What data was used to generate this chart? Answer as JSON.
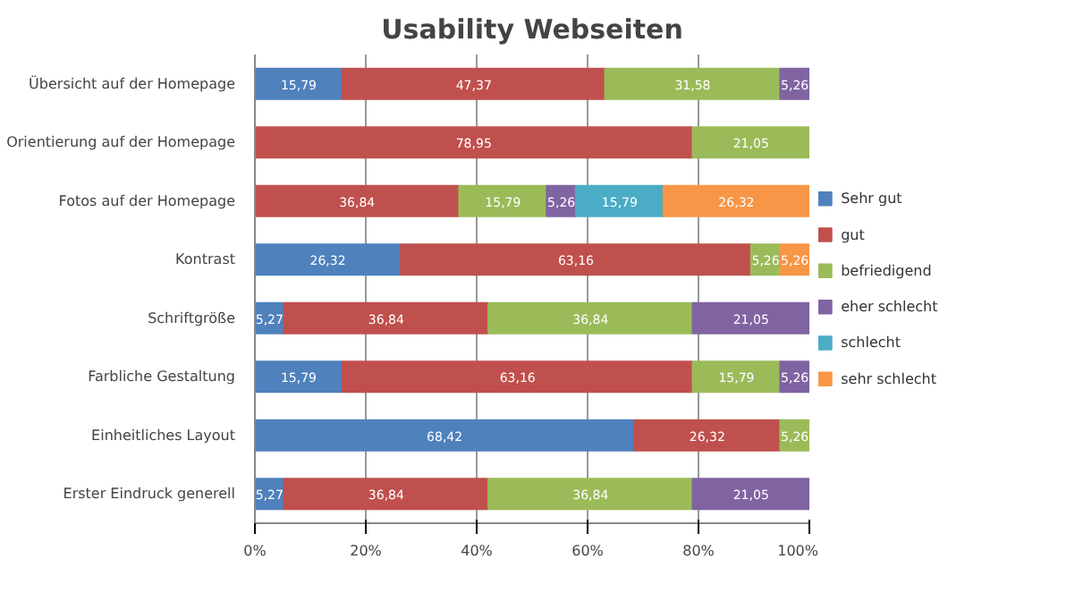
{
  "chart_data": {
    "type": "bar",
    "title": "Usability Webseiten",
    "orientation": "horizontal",
    "stacked": true,
    "categories": [
      "Übersicht auf der Homepage",
      "Orientierung auf der Homepage",
      "Fotos auf der Homepage",
      "Kontrast",
      "Schriftgröße",
      "Farbliche Gestaltung",
      "Einheitliches Layout",
      "Erster Eindruck generell"
    ],
    "series": [
      {
        "name": "Sehr gut",
        "color": "#4f81bd",
        "values": [
          15.79,
          null,
          null,
          26.32,
          5.27,
          15.79,
          68.42,
          5.27
        ],
        "value_labels": [
          "15,79",
          null,
          null,
          "26,32",
          "5,27",
          "15,79",
          "68,42",
          "5,27"
        ]
      },
      {
        "name": "gut",
        "color": "#c0504d",
        "values": [
          47.37,
          78.95,
          36.84,
          63.16,
          36.84,
          63.16,
          26.32,
          36.84
        ],
        "value_labels": [
          "47,37",
          "78,95",
          "36,84",
          "63,16",
          "36,84",
          "63,16",
          "26,32",
          "36,84"
        ]
      },
      {
        "name": "befriedigend",
        "color": "#9bbb59",
        "values": [
          31.58,
          21.05,
          15.79,
          5.26,
          36.84,
          15.79,
          5.26,
          36.84
        ],
        "value_labels": [
          "31,58",
          "21,05",
          "15,79",
          "5,26",
          "36,84",
          "15,79",
          "5,26",
          "36,84"
        ]
      },
      {
        "name": "eher schlecht",
        "color": "#8064a2",
        "values": [
          5.26,
          null,
          5.26,
          null,
          21.05,
          5.26,
          null,
          21.05
        ],
        "value_labels": [
          "5,26",
          null,
          "5,26",
          null,
          "21,05",
          "5,26",
          null,
          "21,05"
        ]
      },
      {
        "name": "schlecht",
        "color": "#4bacc6",
        "values": [
          null,
          null,
          15.79,
          null,
          null,
          null,
          null,
          null
        ],
        "value_labels": [
          null,
          null,
          "15,79",
          null,
          null,
          null,
          null,
          null
        ]
      },
      {
        "name": "sehr schlecht",
        "color": "#f79646",
        "values": [
          null,
          null,
          26.32,
          5.26,
          null,
          null,
          null,
          null
        ],
        "value_labels": [
          null,
          null,
          "26,32",
          "5,26",
          null,
          null,
          null,
          null
        ]
      }
    ],
    "xlim": [
      0,
      100
    ],
    "xticks": [
      {
        "value": 0,
        "label": "0%"
      },
      {
        "value": 20,
        "label": "20%"
      },
      {
        "value": 40,
        "label": "40%"
      },
      {
        "value": 60,
        "label": "60%"
      },
      {
        "value": 80,
        "label": "80%"
      },
      {
        "value": 100,
        "label": "100%"
      }
    ],
    "grid": "x",
    "legend": "right"
  }
}
